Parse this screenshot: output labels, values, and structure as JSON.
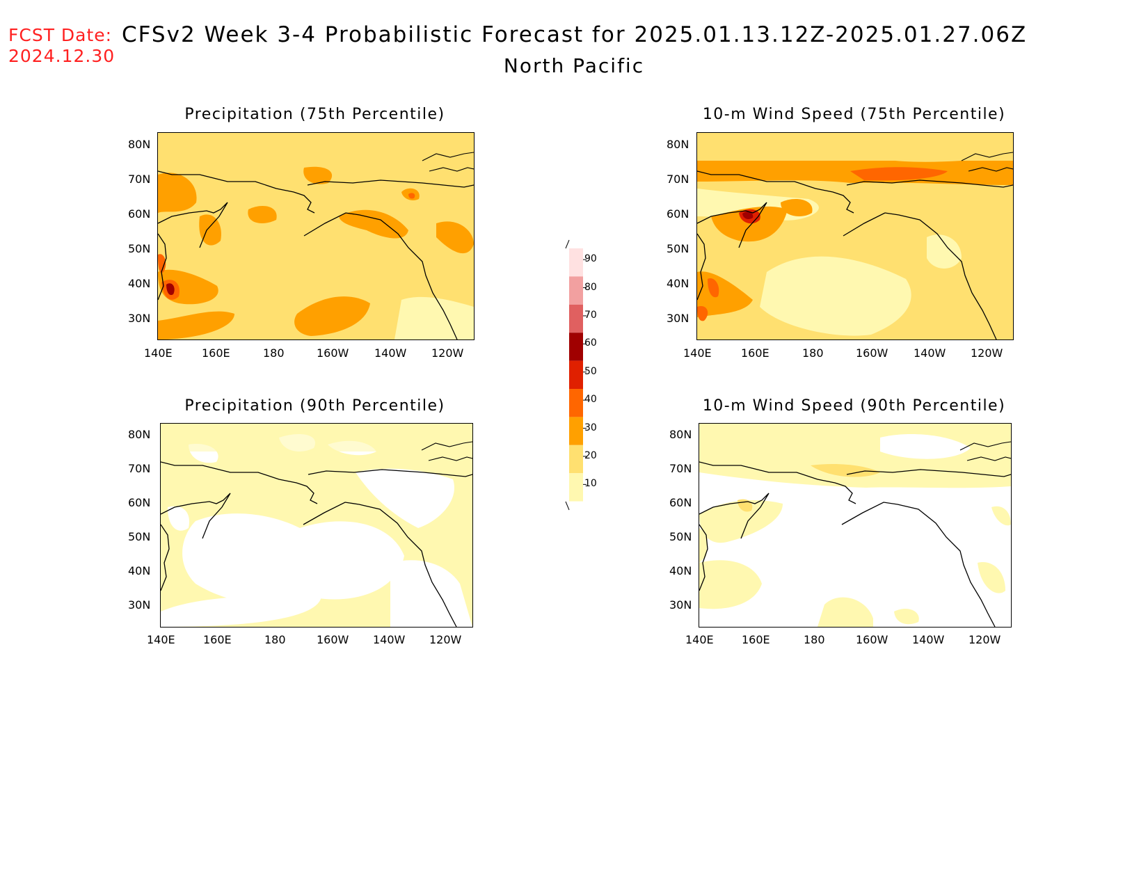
{
  "header": {
    "fcst_label": "FCST Date:",
    "fcst_date": "2024.12.30",
    "title": "CFSv2 Week 3-4 Probabilistic Forecast for 2025.01.13.12Z-2025.01.27.06Z",
    "subtitle": "North Pacific"
  },
  "axes": {
    "lon_ticks": [
      "140E",
      "160E",
      "180",
      "160W",
      "140W",
      "120W"
    ],
    "lat_ticks": [
      "80N",
      "70N",
      "60N",
      "50N",
      "40N",
      "30N"
    ]
  },
  "panels": [
    {
      "title": "Precipitation (75th Percentile)"
    },
    {
      "title": "10-m Wind Speed (75th Percentile)"
    },
    {
      "title": "Precipitation (90th Percentile)"
    },
    {
      "title": "10-m Wind Speed (90th Percentile)"
    }
  ],
  "colorbar": {
    "labels": [
      "90",
      "80",
      "70",
      "60",
      "50",
      "40",
      "30",
      "20",
      "10"
    ],
    "colors": [
      "#ffe1e1",
      "#f2a0a0",
      "#e06060",
      "#a00000",
      "#e02000",
      "#ff6600",
      "#ffa000",
      "#ffe070",
      "#fff8b0"
    ]
  },
  "colors": {
    "fcst_red": "#ff2020",
    "land_base_75": "#ffe070",
    "land_base_90": "#fff8b0"
  }
}
